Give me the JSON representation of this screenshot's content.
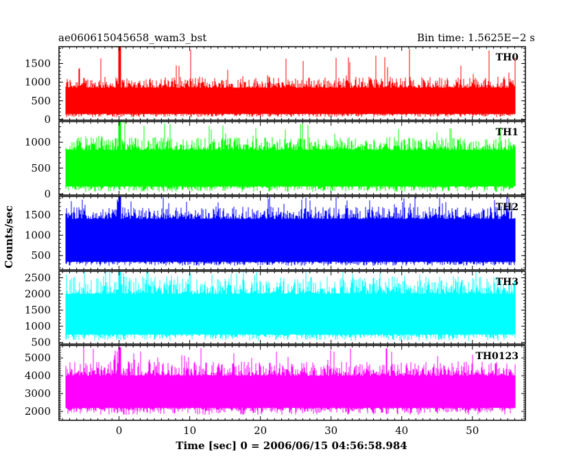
{
  "chart_data": {
    "type": "line",
    "title_left": "ae060615045658_wam3_bst",
    "title_right": "Bin time: 1.5625E−2 s",
    "xlabel": "Time [sec] 0 = 2006/06/15 04:56:58.984",
    "ylabel": "Counts/sec",
    "xlim": [
      -8.5,
      57.5
    ],
    "x_ticks": [
      0,
      10,
      20,
      30,
      40,
      50
    ],
    "x_tick_labels": [
      "0",
      "10",
      "20",
      "30",
      "40",
      "50"
    ],
    "data_x_range": [
      -7.5,
      56
    ],
    "bin_time": 0.015625,
    "panels": [
      {
        "name": "TH0",
        "color": "#ff0000",
        "ylim": [
          -20,
          1950
        ],
        "y_ticks": [
          0,
          500,
          1000,
          1500
        ],
        "y_tick_labels": [
          "0",
          "500",
          "1000",
          "1500"
        ],
        "baseline_min": 150,
        "baseline_max": 850,
        "typical_min": 60,
        "typical_max": 1150,
        "peak_max": 1950,
        "burst_time": 0.1
      },
      {
        "name": "TH1",
        "color": "#00ff00",
        "ylim": [
          -20,
          1400
        ],
        "y_ticks": [
          0,
          500,
          1000
        ],
        "y_tick_labels": [
          "0",
          "500",
          "1000"
        ],
        "baseline_min": 150,
        "baseline_max": 850,
        "typical_min": 40,
        "typical_max": 1100,
        "peak_max": 1400,
        "burst_time": 0.1
      },
      {
        "name": "TH2",
        "color": "#0000ff",
        "ylim": [
          150,
          1950
        ],
        "y_ticks": [
          500,
          1000,
          1500
        ],
        "y_tick_labels": [
          "500",
          "1000",
          "1500"
        ],
        "baseline_min": 350,
        "baseline_max": 1400,
        "typical_min": 250,
        "typical_max": 1700,
        "peak_max": 1950,
        "burst_time": 0.1
      },
      {
        "name": "TH3",
        "color": "#00ffff",
        "ylim": [
          450,
          2700
        ],
        "y_ticks": [
          500,
          1000,
          1500,
          2000,
          2500
        ],
        "y_tick_labels": [
          "500",
          "1000",
          "1500",
          "2000",
          "2500"
        ],
        "baseline_min": 750,
        "baseline_max": 2000,
        "typical_min": 550,
        "typical_max": 2550,
        "peak_max": 2700,
        "burst_time": 0.1
      },
      {
        "name": "TH0123",
        "color": "#ff00ff",
        "ylim": [
          1500,
          5700
        ],
        "y_ticks": [
          2000,
          3000,
          4000,
          5000
        ],
        "y_tick_labels": [
          "2000",
          "3000",
          "4000",
          "5000"
        ],
        "baseline_min": 2200,
        "baseline_max": 4000,
        "typical_min": 1800,
        "typical_max": 4800,
        "peak_max": 5600,
        "burst_time": 0.1
      }
    ]
  }
}
